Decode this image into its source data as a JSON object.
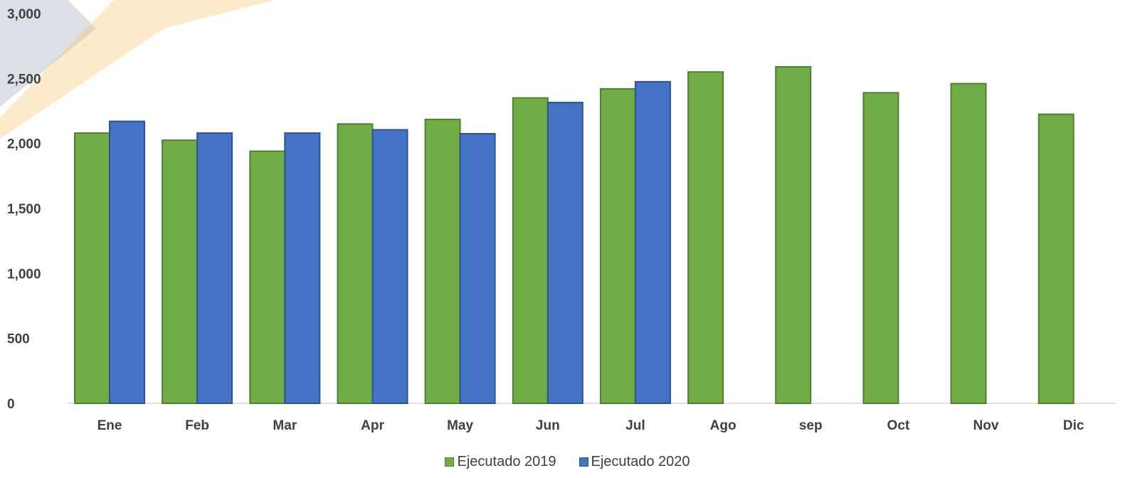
{
  "colors": {
    "series_2019_fill": "#70AD47",
    "series_2019_stroke": "#507E32",
    "series_2020_fill": "#4472C4",
    "series_2020_stroke": "#2F528F",
    "axis": "#D9D9D9",
    "text": "#404040",
    "watermark_gray": "#D0D4DC",
    "watermark_orange": "#F6C36A"
  },
  "chart_data": {
    "type": "bar",
    "categories": [
      "Ene",
      "Feb",
      "Mar",
      "Apr",
      "May",
      "Jun",
      "Jul",
      "Ago",
      "sep",
      "Oct",
      "Nov",
      "Dic"
    ],
    "series": [
      {
        "name": "Ejecutado 2019",
        "values": [
          2080,
          2025,
          1940,
          2150,
          2185,
          2350,
          2420,
          2550,
          2590,
          2390,
          2460,
          2225
        ]
      },
      {
        "name": "Ejecutado 2020",
        "values": [
          2170,
          2080,
          2080,
          2105,
          2075,
          2315,
          2475,
          null,
          null,
          null,
          null,
          null
        ]
      }
    ],
    "yticks": [
      "0",
      "500",
      "1,000",
      "1,500",
      "2,000",
      "2,500",
      "3,000"
    ],
    "ylim": [
      0,
      3000
    ],
    "grid": false,
    "legend_position": "bottom"
  }
}
